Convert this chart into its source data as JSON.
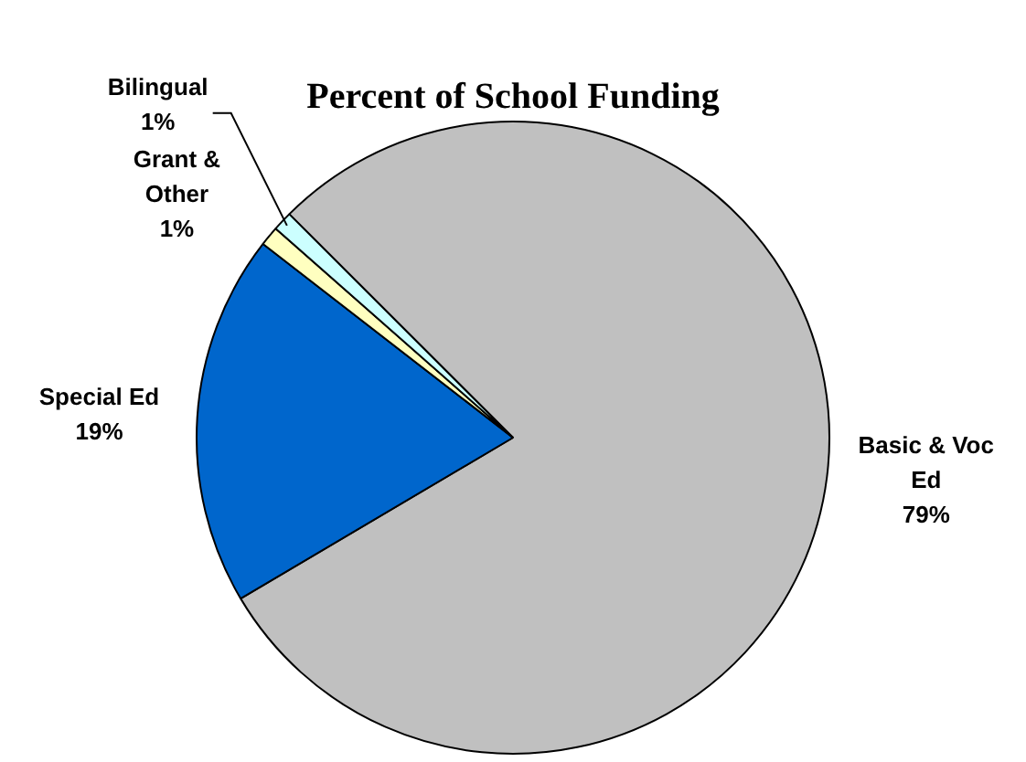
{
  "chart_data": {
    "type": "pie",
    "title": "Percent of School Funding",
    "categories": [
      "Basic & Voc Ed",
      "Special Ed",
      "Grant & Other",
      "Bilingual"
    ],
    "values": [
      79,
      19,
      1,
      1
    ],
    "colors": [
      "#c0c0c0",
      "#0066cc",
      "#ffffc0",
      "#ccffff"
    ],
    "value_labels": [
      "79%",
      "19%",
      "1%",
      "1%"
    ],
    "legend": false
  }
}
